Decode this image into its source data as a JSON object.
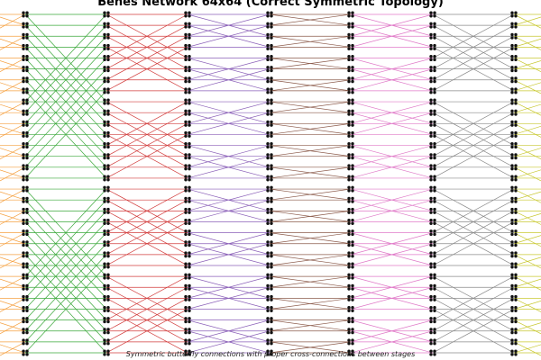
{
  "title": "Benes Network 64x64 (Correct Symmetric Topology)",
  "caption": "Symmetric butterfly connections with proper cross-connections between stages"
}
